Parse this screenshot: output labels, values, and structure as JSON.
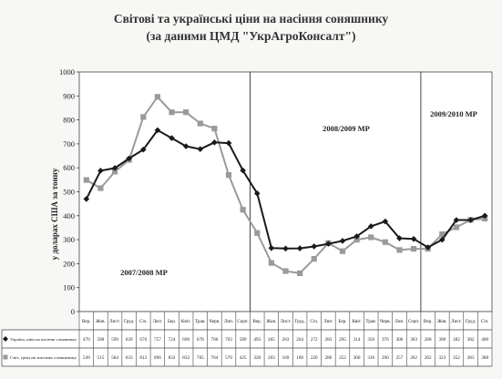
{
  "chart_data": {
    "type": "line",
    "title": "Світові та українські ціни на насіння соняшнику",
    "subtitle": "(за даними ЦМД \"УкрАгроКонсалт\")",
    "ylabel": "у доларах США за тонну",
    "xlabel": "",
    "ylim": [
      0,
      1000
    ],
    "yticks": [
      0,
      100,
      200,
      300,
      400,
      500,
      600,
      700,
      800,
      900,
      1000
    ],
    "grid": false,
    "legend": "table-bottom",
    "categories": [
      "Вер.",
      "Жов.",
      "Лист.",
      "Груд.",
      "Січ.",
      "Лют.",
      "Бер.",
      "Квіт.",
      "Трав.",
      "Черв.",
      "Лип.",
      "Серп.",
      "Вер.",
      "Жов.",
      "Лист.",
      "Груд.",
      "Січ.",
      "Лют.",
      "Бер.",
      "Квіт.",
      "Трав.",
      "Черв.",
      "Лип.",
      "Серп.",
      "Вер.",
      "Жов.",
      "Лист.",
      "Груд.",
      "Січ."
    ],
    "series": [
      {
        "name": "Україна, ціни на насіння соняшнику",
        "color": "#1a1a1a",
        "marker": "diamond",
        "values": [
          470,
          588,
          599,
          639,
          676,
          757,
          724,
          690,
          678,
          706,
          703,
          589,
          493,
          265,
          263,
          264,
          272,
          283,
          295,
          314,
          356,
          376,
          306,
          303,
          268,
          300,
          382,
          382,
          400
        ]
      },
      {
        "name": "Світ, ціни на насіння соняшнику",
        "color": "#9a9a9a",
        "marker": "square",
        "values": [
          549,
          515,
          584,
          633,
          812,
          896,
          832,
          832,
          785,
          764,
          570,
          425,
          328,
          203,
          169,
          160,
          220,
          286,
          252,
          300,
          310,
          290,
          257,
          262,
          262,
          323,
          352,
          383,
          388
        ]
      }
    ],
    "periods": [
      "2007/2008 МР",
      "2008/2009 МР",
      "2009/2010 МР"
    ],
    "period_dividers_after": [
      11,
      23
    ]
  }
}
